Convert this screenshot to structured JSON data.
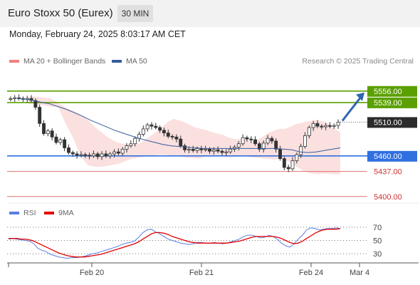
{
  "header": {
    "title": "Euro Stoxx 50 (Eurex)",
    "timeframe": "30 MIN",
    "datetime": "Monday, February 24, 2025 8:03:17 AM CET",
    "credit": "Research © 2025 Trading Central"
  },
  "colors": {
    "support": "#2f6fe0",
    "resistance": "#5aa000",
    "minor_level": "#e07070",
    "bollinger_fill": "#fadada",
    "ma20": "#f08080",
    "ma50": "#345c9c",
    "rsi": "#5b7fe0",
    "rsi_ma": "#e00000",
    "arrow": "#2f66b0",
    "candle": "#333333"
  },
  "legend": {
    "price": [
      {
        "label": "MA 20 + Bollinger Bands",
        "color": "#f08080"
      },
      {
        "label": "MA 50",
        "color": "#345c9c"
      }
    ],
    "rsi": [
      {
        "label": "RSI",
        "color": "#5b7fe0"
      },
      {
        "label": "9MA",
        "color": "#e00000"
      }
    ]
  },
  "chart_data": [
    {
      "type": "candlestick",
      "title": "Euro Stoxx 50 (Eurex)",
      "timeframe": "30 MIN",
      "x_ticks": [
        "Feb 20",
        "Feb 21",
        "Feb 24",
        "Mar 4"
      ],
      "ylim": [
        5385,
        5580
      ],
      "levels": [
        {
          "value": 5556.0,
          "label": "5556.00",
          "kind": "resistance"
        },
        {
          "value": 5539.0,
          "label": "5539.00",
          "kind": "resistance"
        },
        {
          "value": 5510.0,
          "label": "5510.00",
          "kind": "last_price"
        },
        {
          "value": 5460.0,
          "label": "5460.00",
          "kind": "support"
        },
        {
          "value": 5437.0,
          "label": "5437.00",
          "kind": "minor"
        },
        {
          "value": 5400.0,
          "label": "5400.00",
          "kind": "minor"
        }
      ],
      "close_series": [
        5545,
        5546,
        5545,
        5544,
        5545,
        5542,
        5532,
        5508,
        5493,
        5497,
        5488,
        5480,
        5484,
        5472,
        5465,
        5463,
        5461,
        5462,
        5461,
        5460,
        5463,
        5459,
        5463,
        5460,
        5463,
        5466,
        5464,
        5470,
        5475,
        5478,
        5486,
        5492,
        5500,
        5506,
        5504,
        5502,
        5498,
        5494,
        5489,
        5488,
        5485,
        5475,
        5469,
        5470,
        5468,
        5471,
        5469,
        5470,
        5467,
        5469,
        5467,
        5465,
        5466,
        5470,
        5473,
        5478,
        5487,
        5485,
        5484,
        5478,
        5470,
        5479,
        5486,
        5482,
        5470,
        5456,
        5443,
        5441,
        5453,
        5462,
        5474,
        5490,
        5502,
        5508,
        5504,
        5503,
        5505,
        5504,
        5505,
        5510
      ],
      "bollinger_upper": [
        5548,
        5548,
        5547,
        5546,
        5545,
        5540,
        5535,
        5530,
        5527,
        5523,
        5517,
        5511,
        5502,
        5496,
        5489,
        5484,
        5480,
        5478,
        5477,
        5477,
        5479,
        5484,
        5490,
        5496,
        5503,
        5510,
        5515,
        5513,
        5510,
        5506,
        5502,
        5500,
        5498,
        5495,
        5493,
        5491,
        5487,
        5485,
        5485,
        5484,
        5482,
        5483,
        5488,
        5494,
        5497,
        5500,
        5500,
        5503,
        5507,
        5509,
        5511,
        5512,
        5513,
        5511,
        5507,
        5500,
        5495
      ],
      "bollinger_lower": [
        5537,
        5536,
        5535,
        5533,
        5532,
        5508,
        5487,
        5460,
        5446,
        5444,
        5444,
        5446,
        5448,
        5452,
        5456,
        5458,
        5460,
        5461,
        5462,
        5461,
        5460,
        5458,
        5457,
        5456,
        5460,
        5461,
        5460,
        5458,
        5459,
        5460,
        5458,
        5457,
        5456,
        5455,
        5455,
        5452,
        5445,
        5438,
        5434,
        5433,
        5434,
        5433,
        5433
      ],
      "ma50": [
        5545,
        5544,
        5542,
        5539,
        5537,
        5533,
        5529,
        5524,
        5519,
        5513,
        5508,
        5503,
        5498,
        5494,
        5490,
        5486,
        5483,
        5480,
        5477,
        5475,
        5474,
        5473,
        5472,
        5471,
        5471,
        5471,
        5471,
        5471,
        5471,
        5471,
        5471,
        5471,
        5471,
        5470,
        5469,
        5466,
        5465,
        5466,
        5468,
        5470,
        5472
      ]
    },
    {
      "type": "line",
      "title": "RSI",
      "y_ticks": [
        70,
        50,
        30
      ],
      "ylim": [
        15,
        85
      ],
      "series": [
        {
          "name": "RSI",
          "values": [
            52,
            53,
            52,
            51,
            50,
            49,
            45,
            38,
            35,
            33,
            29,
            27,
            25,
            24,
            23,
            24,
            24,
            25,
            26,
            28,
            30,
            31,
            33,
            35,
            37,
            39,
            41,
            44,
            46,
            47,
            49,
            55,
            62,
            66,
            67,
            63,
            60,
            56,
            52,
            50,
            48,
            46,
            45,
            44,
            45,
            47,
            47,
            46,
            46,
            47,
            46,
            45,
            46,
            48,
            50,
            52,
            56,
            58,
            58,
            56,
            54,
            55,
            58,
            56,
            52,
            46,
            42,
            40,
            45,
            52,
            58,
            66,
            69,
            68,
            66,
            67,
            68,
            68,
            69,
            68
          ]
        },
        {
          "name": "9MA",
          "values": [
            53,
            53,
            53,
            52,
            52,
            51,
            49,
            46,
            43,
            40,
            37,
            34,
            31,
            29,
            27,
            26,
            25,
            25,
            25,
            26,
            27,
            28,
            29,
            31,
            33,
            35,
            37,
            39,
            41,
            43,
            45,
            48,
            52,
            56,
            60,
            62,
            62,
            61,
            59,
            56,
            54,
            52,
            50,
            48,
            47,
            46,
            46,
            46,
            46,
            46,
            46,
            46,
            46,
            47,
            48,
            49,
            51,
            53,
            55,
            56,
            56,
            56,
            56,
            56,
            55,
            53,
            50,
            47,
            45,
            46,
            49,
            53,
            57,
            61,
            64,
            66,
            67,
            67,
            67,
            68
          ]
        }
      ]
    }
  ]
}
